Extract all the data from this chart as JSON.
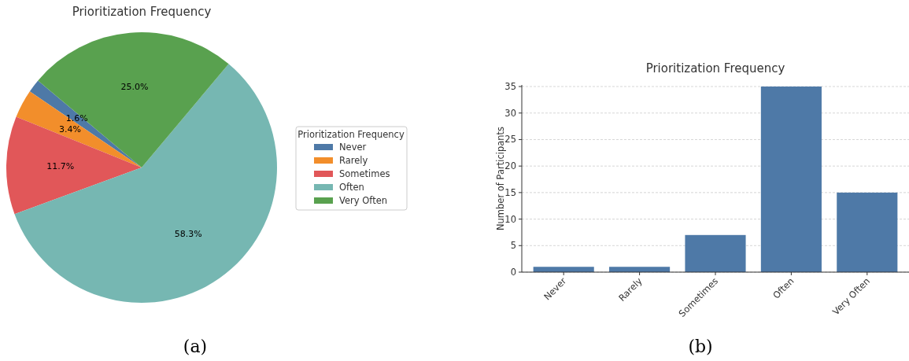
{
  "chart_data": [
    {
      "type": "pie",
      "title": "Prioritization Frequency",
      "legend_title": "Prioritization Frequency",
      "legend": "right",
      "value_labels": [
        "1.6%",
        "3.4%",
        "11.7%",
        "58.3%",
        "25.0%"
      ],
      "categories": [
        "Never",
        "Rarely",
        "Sometimes",
        "Often",
        "Very Often"
      ],
      "values": [
        1.6,
        3.4,
        11.7,
        58.3,
        25.0
      ],
      "colors": [
        "#4e79a7",
        "#f28e2b",
        "#e15759",
        "#76b7b2",
        "#59a14f"
      ],
      "annotations": [
        "(a)"
      ]
    },
    {
      "type": "bar",
      "title": "Prioritization Frequency",
      "ylabel": "Number of Participants",
      "categories": [
        "Never",
        "Rarely",
        "Sometimes",
        "Often",
        "Very Often"
      ],
      "values": [
        1,
        1,
        7,
        35,
        15
      ],
      "color": "#4e79a7",
      "ylim": [
        0,
        35.3
      ],
      "yticks": [
        0,
        5,
        10,
        15,
        20,
        25,
        30,
        35
      ],
      "grid": "y",
      "annotations": [
        "(b)"
      ]
    }
  ]
}
